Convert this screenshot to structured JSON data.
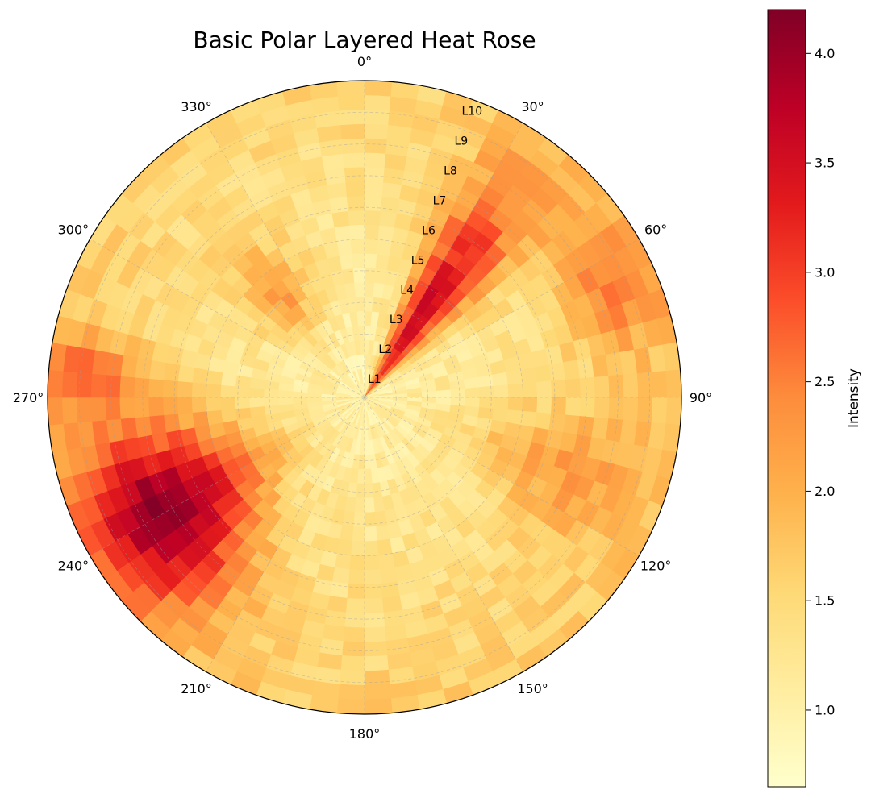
{
  "chart_data": {
    "type": "heatmap",
    "subtype": "polar-layered-heat-rose",
    "title": "Basic Polar Layered Heat Rose",
    "theta_direction": "clockwise",
    "theta_zero": "N",
    "theta_ticks": [
      "0°",
      "30°",
      "60°",
      "90°",
      "120°",
      "150°",
      "180°",
      "210°",
      "240°",
      "270°",
      "300°",
      "330°"
    ],
    "ring_labels": [
      "L1",
      "L2",
      "L3",
      "L4",
      "L5",
      "L6",
      "L7",
      "L8",
      "L9",
      "L10"
    ],
    "ring_label_angle_deg": 20,
    "sectors": 72,
    "rings": 22,
    "colorbar": {
      "label": "Intensity",
      "min": 0.65,
      "max": 4.2,
      "ticks": [
        "1.0",
        "1.5",
        "2.0",
        "2.5",
        "3.0",
        "3.5",
        "4.0"
      ],
      "tick_values": [
        1.0,
        1.5,
        2.0,
        2.5,
        3.0,
        3.5,
        4.0
      ],
      "colormap": "YlOrRd",
      "colormap_stops": [
        "#ffffcc",
        "#ffeda0",
        "#fed976",
        "#feb24c",
        "#fd8d3c",
        "#fc4e2a",
        "#e31a1c",
        "#bd0026",
        "#800026"
      ]
    },
    "intensity_model": {
      "base_inner": 1.0,
      "base_outer": 1.65,
      "hotspots": [
        {
          "angle_deg": 35,
          "radius_frac": 0.3,
          "peak": 3.6,
          "angle_width_deg": 9,
          "radius_width": 0.35
        },
        {
          "angle_deg": 240,
          "radius_frac": 0.7,
          "peak": 4.1,
          "angle_width_deg": 16,
          "radius_width": 0.22
        },
        {
          "angle_deg": 65,
          "radius_frac": 0.86,
          "peak": 2.6,
          "angle_width_deg": 10,
          "radius_width": 0.12
        },
        {
          "angle_deg": 275,
          "radius_frac": 0.88,
          "peak": 2.6,
          "angle_width_deg": 6,
          "radius_width": 0.1
        },
        {
          "angle_deg": 320,
          "radius_frac": 0.42,
          "peak": 2.3,
          "angle_width_deg": 10,
          "radius_width": 0.12
        },
        {
          "angle_deg": 110,
          "radius_frac": 0.65,
          "peak": 2.2,
          "angle_width_deg": 12,
          "radius_width": 0.2
        },
        {
          "angle_deg": 0,
          "radius_frac": 0.45,
          "peak": 0.9,
          "angle_width_deg": 40,
          "radius_width": 0.5
        }
      ],
      "seed": 7
    }
  }
}
